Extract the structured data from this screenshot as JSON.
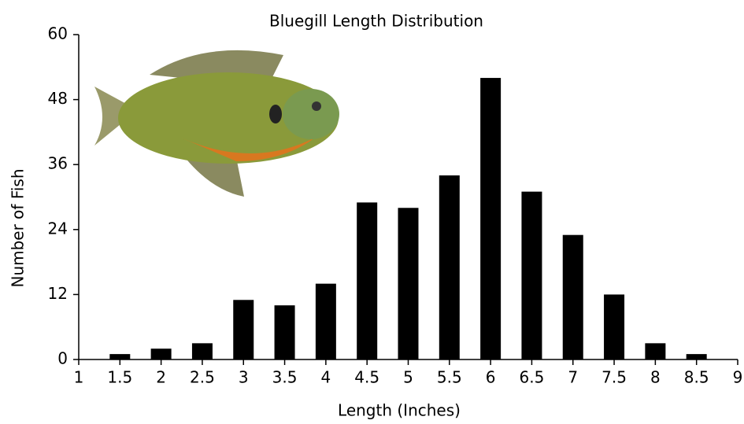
{
  "chart_data": {
    "type": "bar",
    "title": "Bluegill Length Distribution",
    "x_label": "Length (Inches)",
    "y_label": "Number of Fish",
    "x": [
      1.5,
      2,
      2.5,
      3,
      3.5,
      4,
      4.5,
      5,
      5.5,
      6,
      6.5,
      7,
      7.5,
      8,
      8.5
    ],
    "values": [
      1,
      2,
      3,
      11,
      10,
      14,
      29,
      28,
      34,
      52,
      31,
      23,
      12,
      3,
      1
    ],
    "color": "#000000",
    "xlim": [
      1,
      9
    ],
    "xticks": [
      1,
      1.5,
      2,
      2.5,
      3,
      3.5,
      4,
      4.5,
      5,
      5.5,
      6,
      6.5,
      7,
      7.5,
      8,
      8.5,
      9
    ],
    "ylim": [
      0,
      60
    ],
    "yticks": [
      0,
      12,
      24,
      36,
      48,
      60
    ],
    "grid": false
  }
}
